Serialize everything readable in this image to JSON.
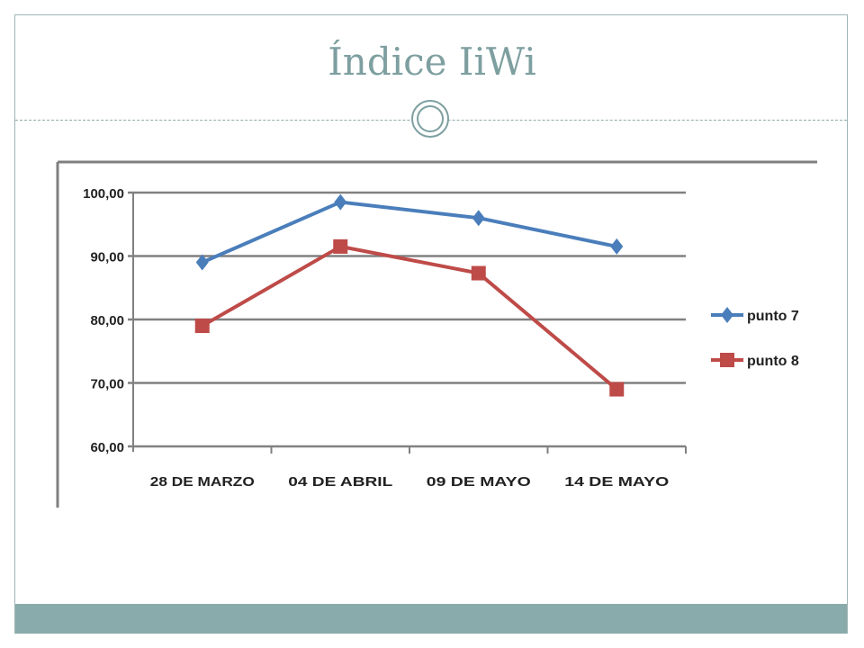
{
  "slide": {
    "title": "Índice IiWi"
  },
  "chart_data": {
    "type": "line",
    "categories": [
      "28 DE MARZO",
      "04 DE ABRIL",
      "09 DE MAYO",
      "14 DE MAYO"
    ],
    "series": [
      {
        "name": "punto 7",
        "values": [
          89.0,
          98.5,
          96.0,
          91.5
        ],
        "color": "#4a7ebb",
        "marker": "diamond"
      },
      {
        "name": "punto 8",
        "values": [
          79.0,
          91.5,
          87.3,
          69.0
        ],
        "color": "#be4b48",
        "marker": "square"
      }
    ],
    "ylim": [
      60,
      100
    ],
    "yticks": [
      "60,00",
      "70,00",
      "80,00",
      "90,00",
      "100,00"
    ],
    "ytick_values": [
      60,
      70,
      80,
      90,
      100
    ],
    "grid": true,
    "legend": "right"
  }
}
